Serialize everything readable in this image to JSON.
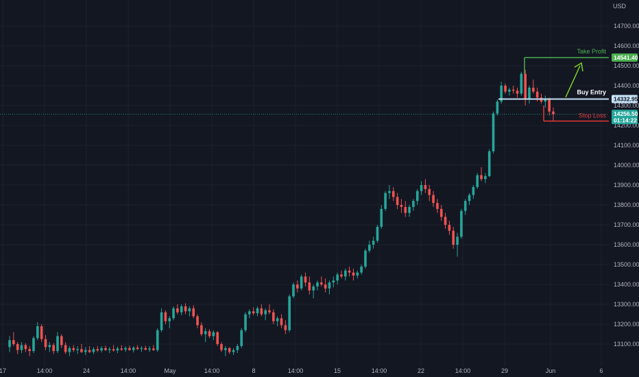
{
  "colors": {
    "background": "#131722",
    "grid": "#1e222d",
    "up": "#26a69a",
    "down": "#ef5350",
    "take_profit": "#4caf50",
    "entry": "#c5e1f5",
    "stop": "#e53935",
    "arrow": "#7ed321",
    "text": "#b2b5be"
  },
  "chart_data": {
    "type": "candlestick",
    "currency_label": "USD",
    "y_ticks": [
      13100,
      13200,
      13300,
      13400,
      13500,
      13600,
      13700,
      13800,
      13900,
      14000,
      14100,
      14200,
      14300,
      14400,
      14500,
      14600,
      14700
    ],
    "y_tick_labels": [
      "13100.00",
      "13200.00",
      "13300.00",
      "13400.00",
      "13500.00",
      "13600.00",
      "13700.00",
      "13800.00",
      "13900.00",
      "14000.00",
      "14100.00",
      "14200.00",
      "14300.00",
      "14400.00",
      "14500.00",
      "14600.00",
      "14700.00"
    ],
    "x_ticks": [
      "17",
      "14:00",
      "24",
      "14:00",
      "May",
      "14:00",
      "8",
      "14:00",
      "15",
      "14:00",
      "22",
      "14:00",
      "29",
      "Jun",
      "6"
    ],
    "annotations": {
      "take_profit": {
        "label": "Take Profit",
        "price": 14541.4,
        "price_label": "14541.40"
      },
      "buy_entry": {
        "label": "Buy Entry",
        "price": 14332.95,
        "price_label": "14332.95"
      },
      "stop_loss": {
        "label": "Stop Loss",
        "price": 14222
      },
      "last_price": {
        "price": 14256.5,
        "price_label": "14256.50",
        "countdown": "01:14:22"
      }
    },
    "candles": [
      [
        13085,
        13140,
        13060,
        13120
      ],
      [
        13120,
        13160,
        13090,
        13100
      ],
      [
        13100,
        13110,
        13050,
        13070
      ],
      [
        13070,
        13110,
        13055,
        13095
      ],
      [
        13095,
        13105,
        13060,
        13075
      ],
      [
        13075,
        13090,
        13040,
        13065
      ],
      [
        13065,
        13140,
        13055,
        13130
      ],
      [
        13130,
        13210,
        13120,
        13190
      ],
      [
        13190,
        13200,
        13110,
        13125
      ],
      [
        13125,
        13145,
        13070,
        13085
      ],
      [
        13085,
        13110,
        13060,
        13095
      ],
      [
        13095,
        13105,
        13050,
        13065
      ],
      [
        13065,
        13160,
        13055,
        13140
      ],
      [
        13140,
        13150,
        13080,
        13095
      ],
      [
        13095,
        13110,
        13050,
        13060
      ],
      [
        13060,
        13090,
        13040,
        13080
      ],
      [
        13080,
        13095,
        13060,
        13070
      ],
      [
        13070,
        13090,
        13050,
        13075
      ],
      [
        13075,
        13100,
        13055,
        13060
      ],
      [
        13060,
        13085,
        13045,
        13070
      ],
      [
        13070,
        13090,
        13055,
        13060
      ],
      [
        13060,
        13085,
        13050,
        13075
      ],
      [
        13075,
        13090,
        13060,
        13068
      ],
      [
        13068,
        13090,
        13058,
        13080
      ],
      [
        13080,
        13092,
        13065,
        13070
      ],
      [
        13070,
        13085,
        13055,
        13075
      ],
      [
        13075,
        13095,
        13062,
        13068
      ],
      [
        13068,
        13088,
        13055,
        13078
      ],
      [
        13078,
        13095,
        13066,
        13072
      ],
      [
        13072,
        13090,
        13060,
        13080
      ],
      [
        13080,
        13092,
        13066,
        13070
      ],
      [
        13070,
        13090,
        13058,
        13082
      ],
      [
        13082,
        13095,
        13070,
        13075
      ],
      [
        13075,
        13090,
        13060,
        13080
      ],
      [
        13080,
        13092,
        13068,
        13072
      ],
      [
        13072,
        13090,
        13060,
        13078
      ],
      [
        13078,
        13095,
        13065,
        13070
      ],
      [
        13070,
        13180,
        13060,
        13170
      ],
      [
        13170,
        13280,
        13160,
        13260
      ],
      [
        13260,
        13270,
        13200,
        13215
      ],
      [
        13215,
        13240,
        13180,
        13230
      ],
      [
        13230,
        13290,
        13220,
        13280
      ],
      [
        13280,
        13300,
        13250,
        13260
      ],
      [
        13260,
        13300,
        13245,
        13290
      ],
      [
        13290,
        13305,
        13250,
        13265
      ],
      [
        13265,
        13290,
        13240,
        13280
      ],
      [
        13280,
        13295,
        13230,
        13240
      ],
      [
        13240,
        13250,
        13180,
        13195
      ],
      [
        13195,
        13210,
        13140,
        13150
      ],
      [
        13150,
        13180,
        13110,
        13165
      ],
      [
        13165,
        13175,
        13130,
        13140
      ],
      [
        13140,
        13170,
        13120,
        13160
      ],
      [
        13160,
        13165,
        13090,
        13100
      ],
      [
        13100,
        13110,
        13060,
        13070
      ],
      [
        13070,
        13090,
        13040,
        13080
      ],
      [
        13080,
        13085,
        13050,
        13060
      ],
      [
        13060,
        13080,
        13045,
        13070
      ],
      [
        13070,
        13100,
        13055,
        13090
      ],
      [
        13090,
        13180,
        13080,
        13170
      ],
      [
        13170,
        13260,
        13160,
        13250
      ],
      [
        13250,
        13275,
        13230,
        13265
      ],
      [
        13265,
        13285,
        13245,
        13255
      ],
      [
        13255,
        13290,
        13240,
        13280
      ],
      [
        13280,
        13300,
        13240,
        13250
      ],
      [
        13250,
        13280,
        13220,
        13270
      ],
      [
        13270,
        13300,
        13250,
        13260
      ],
      [
        13260,
        13275,
        13200,
        13215
      ],
      [
        13215,
        13240,
        13190,
        13230
      ],
      [
        13230,
        13250,
        13180,
        13195
      ],
      [
        13195,
        13220,
        13150,
        13170
      ],
      [
        13170,
        13350,
        13160,
        13340
      ],
      [
        13340,
        13410,
        13330,
        13400
      ],
      [
        13400,
        13420,
        13360,
        13380
      ],
      [
        13380,
        13450,
        13370,
        13440
      ],
      [
        13440,
        13460,
        13390,
        13410
      ],
      [
        13410,
        13440,
        13350,
        13370
      ],
      [
        13370,
        13400,
        13330,
        13390
      ],
      [
        13390,
        13420,
        13370,
        13410
      ],
      [
        13410,
        13440,
        13390,
        13400
      ],
      [
        13400,
        13430,
        13360,
        13380
      ],
      [
        13380,
        13420,
        13350,
        13410
      ],
      [
        13410,
        13440,
        13385,
        13420
      ],
      [
        13420,
        13460,
        13400,
        13450
      ],
      [
        13450,
        13470,
        13430,
        13440
      ],
      [
        13440,
        13480,
        13420,
        13470
      ],
      [
        13470,
        13490,
        13440,
        13460
      ],
      [
        13460,
        13480,
        13420,
        13445
      ],
      [
        13445,
        13470,
        13430,
        13460
      ],
      [
        13460,
        13500,
        13450,
        13490
      ],
      [
        13490,
        13580,
        13480,
        13570
      ],
      [
        13570,
        13620,
        13560,
        13600
      ],
      [
        13600,
        13640,
        13580,
        13620
      ],
      [
        13620,
        13700,
        13610,
        13690
      ],
      [
        13690,
        13800,
        13680,
        13780
      ],
      [
        13780,
        13870,
        13770,
        13860
      ],
      [
        13860,
        13900,
        13830,
        13870
      ],
      [
        13870,
        13890,
        13820,
        13840
      ],
      [
        13840,
        13860,
        13780,
        13800
      ],
      [
        13800,
        13830,
        13760,
        13790
      ],
      [
        13790,
        13820,
        13740,
        13760
      ],
      [
        13760,
        13800,
        13740,
        13790
      ],
      [
        13790,
        13830,
        13770,
        13820
      ],
      [
        13820,
        13880,
        13800,
        13870
      ],
      [
        13870,
        13920,
        13850,
        13900
      ],
      [
        13900,
        13930,
        13860,
        13880
      ],
      [
        13880,
        13900,
        13820,
        13850
      ],
      [
        13850,
        13870,
        13790,
        13810
      ],
      [
        13810,
        13830,
        13760,
        13780
      ],
      [
        13780,
        13800,
        13720,
        13740
      ],
      [
        13740,
        13760,
        13680,
        13700
      ],
      [
        13700,
        13720,
        13650,
        13670
      ],
      [
        13670,
        13690,
        13580,
        13600
      ],
      [
        13600,
        13660,
        13540,
        13640
      ],
      [
        13640,
        13780,
        13630,
        13770
      ],
      [
        13770,
        13830,
        13750,
        13820
      ],
      [
        13820,
        13860,
        13800,
        13850
      ],
      [
        13850,
        13900,
        13830,
        13890
      ],
      [
        13890,
        13960,
        13880,
        13950
      ],
      [
        13950,
        13990,
        13920,
        13930
      ],
      [
        13930,
        13960,
        13910,
        13945
      ],
      [
        13945,
        14080,
        13940,
        14070
      ],
      [
        14070,
        14270,
        14060,
        14260
      ],
      [
        14260,
        14330,
        14250,
        14320
      ],
      [
        14320,
        14420,
        14310,
        14400
      ],
      [
        14400,
        14410,
        14360,
        14370
      ],
      [
        14370,
        14390,
        14350,
        14380
      ],
      [
        14380,
        14400,
        14360,
        14375
      ],
      [
        14375,
        14390,
        14340,
        14360
      ],
      [
        14360,
        14470,
        14350,
        14460
      ],
      [
        14460,
        14480,
        14300,
        14330
      ],
      [
        14330,
        14400,
        14310,
        14390
      ],
      [
        14390,
        14430,
        14360,
        14370
      ],
      [
        14370,
        14390,
        14320,
        14340
      ],
      [
        14340,
        14360,
        14310,
        14320
      ],
      [
        14320,
        14350,
        14290,
        14330
      ],
      [
        14330,
        14340,
        14250,
        14270
      ],
      [
        14270,
        14290,
        14220,
        14256.5
      ]
    ]
  }
}
